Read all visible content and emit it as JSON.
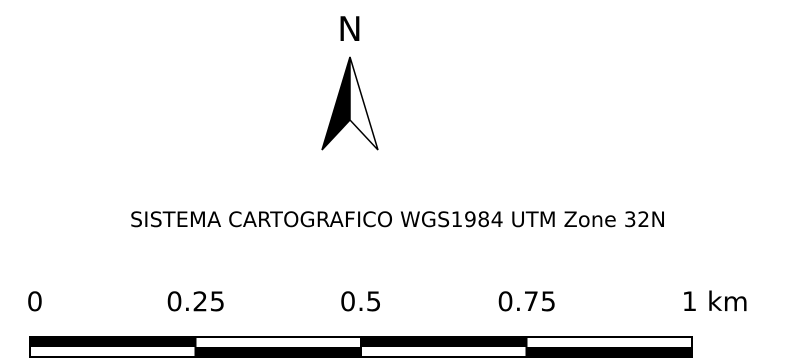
{
  "north_arrow": {
    "letter": "N",
    "icon": "north-arrow-icon"
  },
  "crs_label": "SISTEMA CARTOGRAFICO WGS1984 UTM Zone 32N",
  "scale_bar": {
    "ticks": [
      {
        "value": 0,
        "label": "0"
      },
      {
        "value": 0.25,
        "label": "0.25"
      },
      {
        "value": 0.5,
        "label": "0.5"
      },
      {
        "value": 0.75,
        "label": "0.75"
      },
      {
        "value": 1,
        "label": "1 km"
      }
    ],
    "unit": "km",
    "segments": 4,
    "colors": {
      "dark": "#000000",
      "light": "#ffffff"
    }
  }
}
